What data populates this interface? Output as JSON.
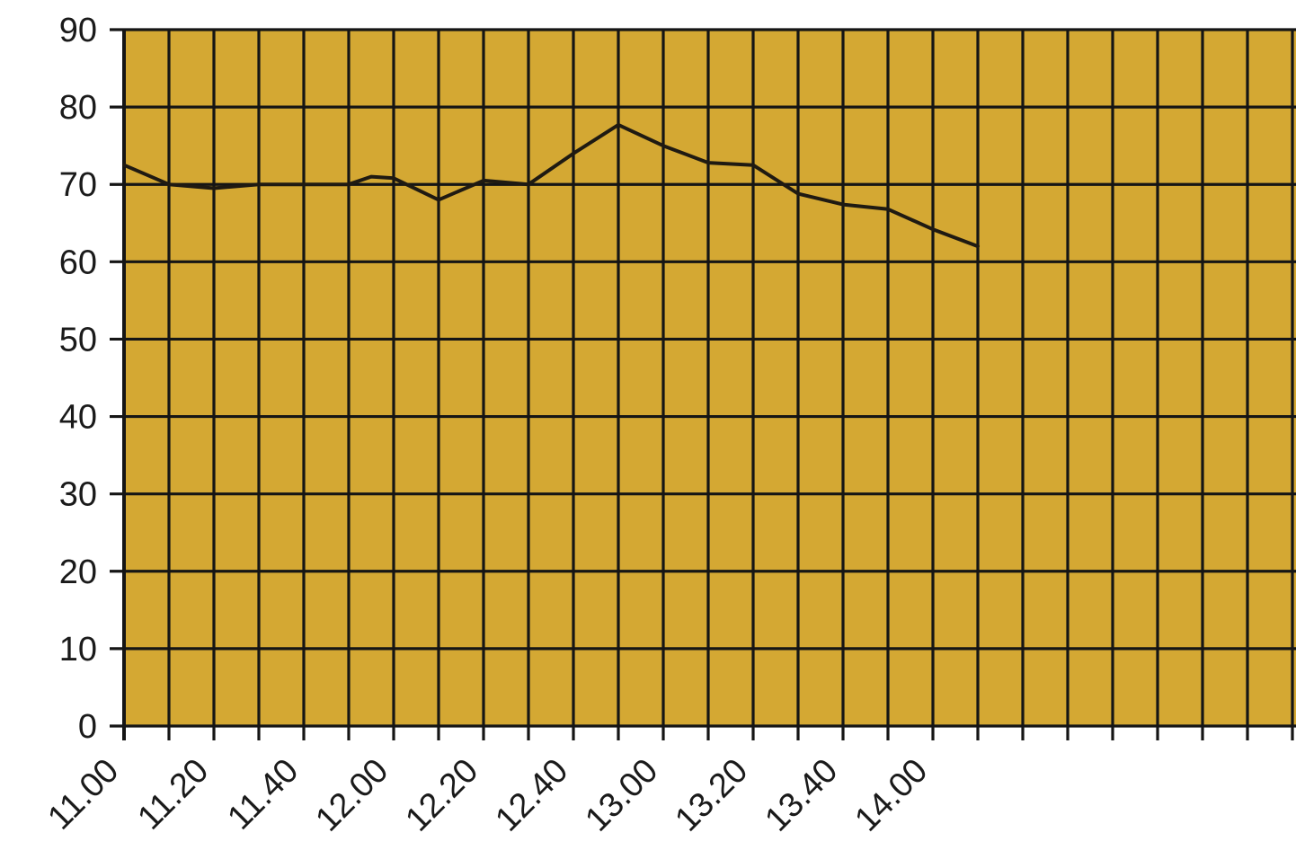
{
  "chart_data": {
    "type": "line",
    "title": "",
    "xlabel": "",
    "ylabel": "",
    "ylim": [
      0,
      90
    ],
    "y_ticks": [
      0,
      10,
      20,
      30,
      40,
      50,
      60,
      70,
      80,
      90
    ],
    "x_tick_labels": [
      "11.00",
      "11.20",
      "11.40",
      "12.00",
      "12.20",
      "12.40",
      "13.00",
      "13.20",
      "13.40",
      "14.00"
    ],
    "x_interval_minutes": 10,
    "x_slots": 26,
    "grid": true,
    "legend": "none",
    "background_color": "#d4a833",
    "grid_color": "#151515",
    "line_color": "#1f1a12",
    "series": [
      {
        "x": [
          "11.00",
          "11.10",
          "11.20",
          "11.30",
          "11.40",
          "11.50",
          "11.55",
          "12.00",
          "12.10",
          "12.20",
          "12.30",
          "12.40",
          "12.50",
          "13.00",
          "13.10",
          "13.20",
          "13.30",
          "13.40",
          "13.50",
          "14.00",
          "14.10"
        ],
        "values": [
          72.5,
          70,
          69.5,
          70,
          70,
          70,
          71,
          70.8,
          68,
          70.5,
          70,
          74,
          77.7,
          75,
          72.8,
          72.5,
          68.8,
          67.4,
          66.8,
          64.2,
          62
        ]
      }
    ]
  }
}
